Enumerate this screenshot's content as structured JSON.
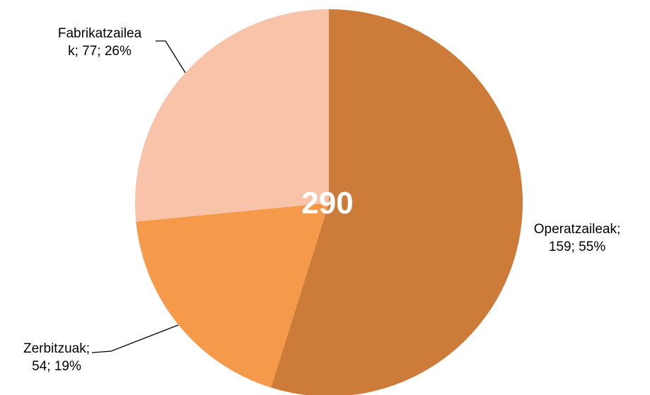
{
  "chart_data": {
    "type": "pie",
    "total_label": "290",
    "slices": [
      {
        "name": "Operatzaileak",
        "value": 159,
        "percent": 55,
        "color": "#CD7B39",
        "label_lines": [
          "Operatzaileak;",
          "159; 55%"
        ]
      },
      {
        "name": "Zerbitzuak",
        "value": 54,
        "percent": 19,
        "color": "#F59A4B",
        "label_lines": [
          "Zerbitzuak;",
          "54; 19%"
        ]
      },
      {
        "name": "Fabrikatzaileak",
        "value": 77,
        "percent": 26,
        "color": "#F8C3A8",
        "label_lines": [
          "Fabrikatzailea",
          "k; 77; 26%"
        ]
      }
    ],
    "start_angle_deg": 0,
    "direction": "clockwise-from-top",
    "legend": "none"
  }
}
